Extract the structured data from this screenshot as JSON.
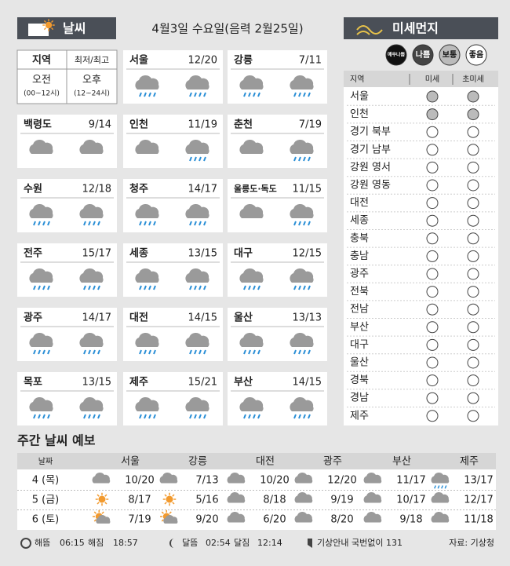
{
  "header": {
    "weather_title": "날씨",
    "date": "4월3일 수요일(음력 2월25일)",
    "dust_title": "미세먼지"
  },
  "legend": {
    "region": "지역",
    "minmax": "최저/최고",
    "am": "오전",
    "am_hours": "(00~12시)",
    "pm": "오후",
    "pm_hours": "(12~24시)"
  },
  "cities": [
    {
      "name": "서울",
      "temp": "12/20"
    },
    {
      "name": "강릉",
      "temp": "7/11"
    },
    {
      "name": "백령도",
      "temp": "9/14"
    },
    {
      "name": "인천",
      "temp": "11/19"
    },
    {
      "name": "춘천",
      "temp": "7/19"
    },
    {
      "name": "수원",
      "temp": "12/18"
    },
    {
      "name": "청주",
      "temp": "14/17"
    },
    {
      "name": "울릉도·독도",
      "temp": "11/15"
    },
    {
      "name": "전주",
      "temp": "15/17"
    },
    {
      "name": "세종",
      "temp": "13/15"
    },
    {
      "name": "대구",
      "temp": "12/15"
    },
    {
      "name": "광주",
      "temp": "14/17"
    },
    {
      "name": "대전",
      "temp": "14/15"
    },
    {
      "name": "울산",
      "temp": "13/13"
    },
    {
      "name": "목포",
      "temp": "13/15"
    },
    {
      "name": "제주",
      "temp": "15/21"
    },
    {
      "name": "부산",
      "temp": "14/15"
    }
  ],
  "dust": {
    "levels": [
      "매우나쁨",
      "나쁨",
      "보통",
      "좋음"
    ],
    "columns": [
      "지역",
      "미세",
      "초미세"
    ],
    "regions": [
      "서울",
      "인천",
      "경기 북부",
      "경기 남부",
      "강원 영서",
      "강원 영동",
      "대전",
      "세종",
      "충북",
      "충남",
      "광주",
      "전북",
      "전남",
      "부산",
      "대구",
      "울산",
      "경북",
      "경남",
      "제주"
    ]
  },
  "weekly": {
    "title": "주간 날씨 예보",
    "header": [
      "날짜",
      "서울",
      "강릉",
      "대전",
      "광주",
      "부산",
      "제주"
    ],
    "rows": [
      {
        "date": "4 (목)",
        "temps": [
          "10/20",
          "7/13",
          "10/20",
          "12/20",
          "11/17",
          "13/17"
        ]
      },
      {
        "date": "5 (금)",
        "temps": [
          "8/17",
          "5/16",
          "8/18",
          "9/19",
          "10/17",
          "12/17"
        ]
      },
      {
        "date": "6 (토)",
        "temps": [
          "7/19",
          "9/20",
          "6/20",
          "8/20",
          "9/18",
          "11/18"
        ]
      }
    ]
  },
  "footer": {
    "sunrise_label": "해뜸",
    "sunrise": "06:15",
    "sunset_label": "해짐",
    "sunset": "18:57",
    "moonrise_label": "달뜸",
    "moonrise": "02:54",
    "moonset_label": "달짐",
    "moonset": "12:14",
    "info": "기상안내 국번없이 131",
    "source": "자료: 기상청"
  }
}
